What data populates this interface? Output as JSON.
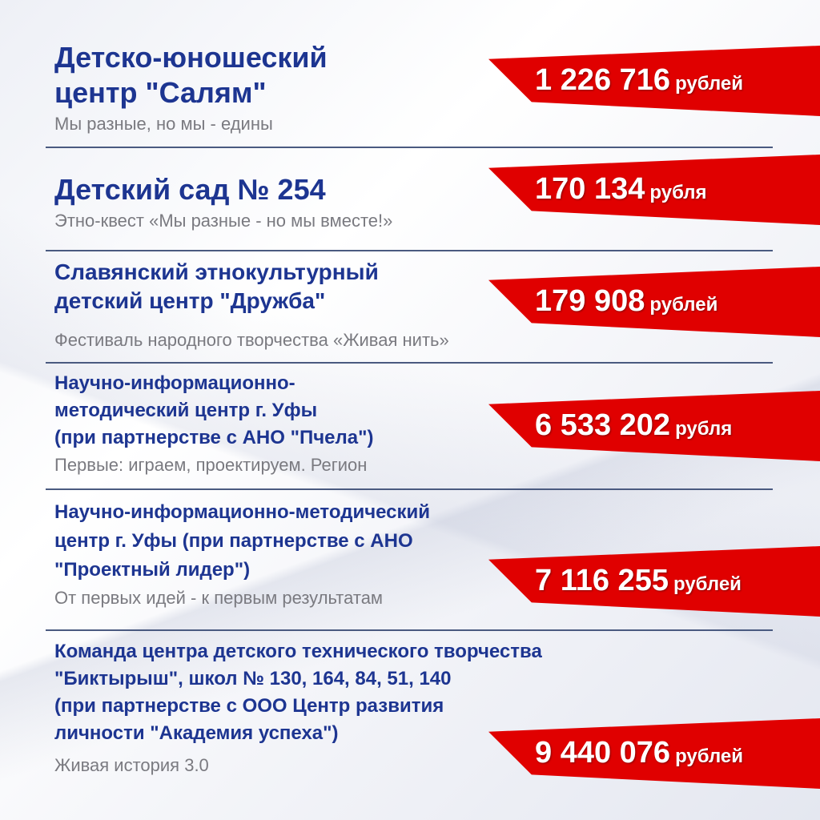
{
  "colors": {
    "title": "#1d3591",
    "ribbon": "#e00000",
    "subtitle": "#7a7a80"
  },
  "items": [
    {
      "title_lines": [
        "Детско-юношеский",
        "центр \"Салям\""
      ],
      "subtitle": "Мы разные, но мы - едины",
      "amount": "1 226 716",
      "unit": "рублей"
    },
    {
      "title_lines": [
        "Детский сад № 254"
      ],
      "subtitle": "Этно-квест «Мы разные - но мы вместе!»",
      "amount": "170 134",
      "unit": "рубля"
    },
    {
      "title_lines": [
        "Славянский этнокультурный",
        "детский центр \"Дружба\""
      ],
      "subtitle": "Фестиваль народного творчества «Живая нить»",
      "amount": "179 908",
      "unit": "рублей"
    },
    {
      "title_lines": [
        "Научно-информационно-",
        "методический центр г. Уфы",
        "(при партнерстве с  АНО \"Пчела\")"
      ],
      "subtitle": "Первые: играем, проектируем. Регион",
      "amount": "6 533 202",
      "unit": "рубля"
    },
    {
      "title_lines": [
        "Научно-информационно-методический",
        "центр г. Уфы (при партнерстве с АНО",
        "\"Проектный лидер\")"
      ],
      "subtitle": "От первых идей - к первым результатам",
      "amount": "7 116 255",
      "unit": "рублей"
    },
    {
      "title_lines": [
        "Команда центра детского технического творчества",
        "\"Биктырыш\", школ № 130, 164, 84, 51, 140",
        "(при партнерстве с ООО Центр развития",
        "личности \"Академия успеха\")"
      ],
      "subtitle": "Живая история 3.0",
      "amount": "9 440 076",
      "unit": "рублей"
    }
  ]
}
